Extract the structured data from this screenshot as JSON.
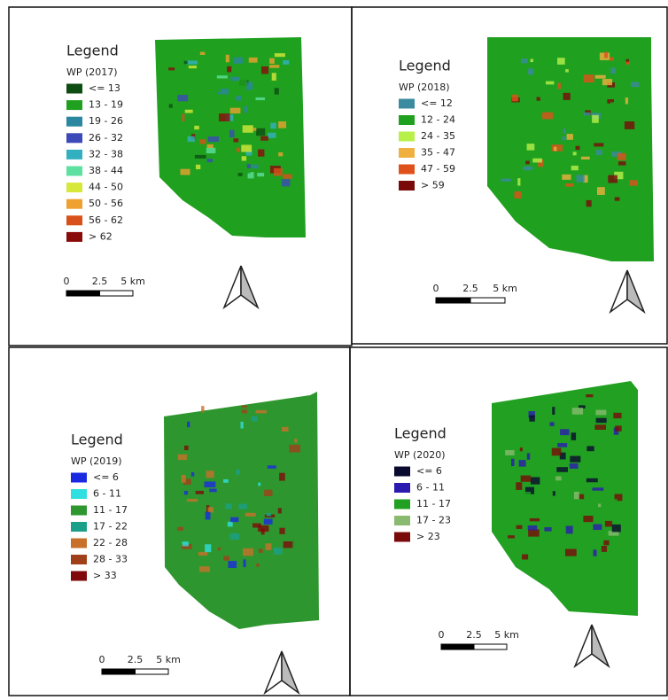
{
  "panels": [
    {
      "title": "Legend",
      "subtitle": "WP (2017)",
      "map_color": "#1fa01f",
      "classes": [
        {
          "label": "<= 13",
          "color": "#0d4d12"
        },
        {
          "label": "13 - 19",
          "color": "#1fa01f"
        },
        {
          "label": "19 - 26",
          "color": "#2b86a0"
        },
        {
          "label": "26 - 32",
          "color": "#3b4ab8"
        },
        {
          "label": "32 - 38",
          "color": "#33b0c0"
        },
        {
          "label": "38 - 44",
          "color": "#5ee0a0"
        },
        {
          "label": "44 - 50",
          "color": "#d6e83a"
        },
        {
          "label": "50 - 56",
          "color": "#f0a030"
        },
        {
          "label": "56 - 62",
          "color": "#d8501a"
        },
        {
          "label": "> 62",
          "color": "#8a0a0a"
        }
      ],
      "scale": [
        "0",
        "2.5",
        "5 km"
      ]
    },
    {
      "title": "Legend",
      "subtitle": "WP (2018)",
      "map_color": "#1fa01f",
      "classes": [
        {
          "label": "<= 12",
          "color": "#3a8aa0"
        },
        {
          "label": "12 - 24",
          "color": "#1fa01f"
        },
        {
          "label": "24 - 35",
          "color": "#b8f04a"
        },
        {
          "label": "35 - 47",
          "color": "#f0b040"
        },
        {
          "label": "47 - 59",
          "color": "#e0501a"
        },
        {
          "label": "> 59",
          "color": "#7a0a0a"
        }
      ],
      "scale": [
        "0",
        "2.5",
        "5 km"
      ]
    },
    {
      "title": "Legend",
      "subtitle": "WP (2019)",
      "map_color": "#2e962e",
      "classes": [
        {
          "label": "<= 6",
          "color": "#1a2ae0"
        },
        {
          "label": "6 - 11",
          "color": "#30e0e0"
        },
        {
          "label": "11 - 17",
          "color": "#2e962e"
        },
        {
          "label": "17 - 22",
          "color": "#1aa08a"
        },
        {
          "label": "22 - 28",
          "color": "#c8702a"
        },
        {
          "label": "28 - 33",
          "color": "#a0401a"
        },
        {
          "label": "> 33",
          "color": "#800a0a"
        }
      ],
      "scale": [
        "0",
        "2.5",
        "5 km"
      ]
    },
    {
      "title": "Legend",
      "subtitle": "WP (2020)",
      "map_color": "#22a022",
      "classes": [
        {
          "label": "<= 6",
          "color": "#0a0a30"
        },
        {
          "label": "6 - 11",
          "color": "#2a1ab0"
        },
        {
          "label": "11 - 17",
          "color": "#22a022"
        },
        {
          "label": "17 - 23",
          "color": "#8aba70"
        },
        {
          "label": "> 23",
          "color": "#7a0a0a"
        }
      ],
      "scale": [
        "0",
        "2.5",
        "5 km"
      ]
    }
  ]
}
